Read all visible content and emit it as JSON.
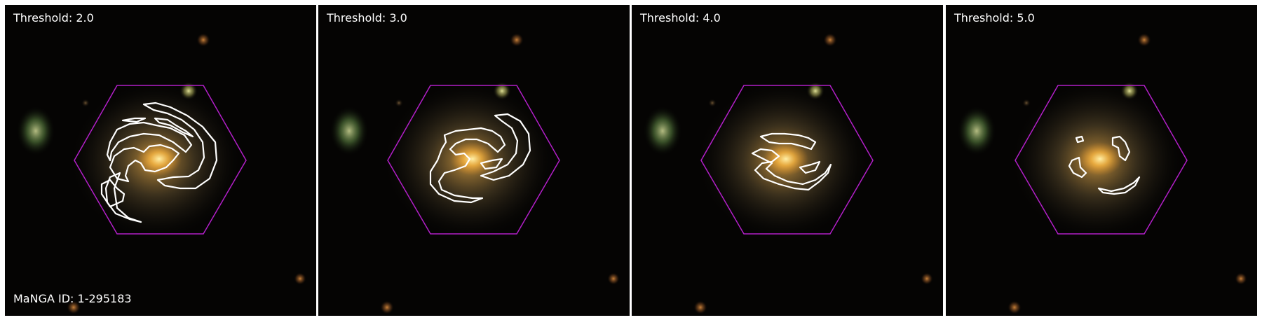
{
  "figure": {
    "manga_id_label": "MaNGA ID: 1-295183",
    "hexagon_color": "#b21fc8",
    "contour_color": "#ffffff",
    "panels": [
      {
        "label": "Threshold: 2.0",
        "threshold": 2.0
      },
      {
        "label": "Threshold: 3.0",
        "threshold": 3.0
      },
      {
        "label": "Threshold: 4.0",
        "threshold": 4.0
      },
      {
        "label": "Threshold: 5.0",
        "threshold": 5.0
      }
    ]
  }
}
